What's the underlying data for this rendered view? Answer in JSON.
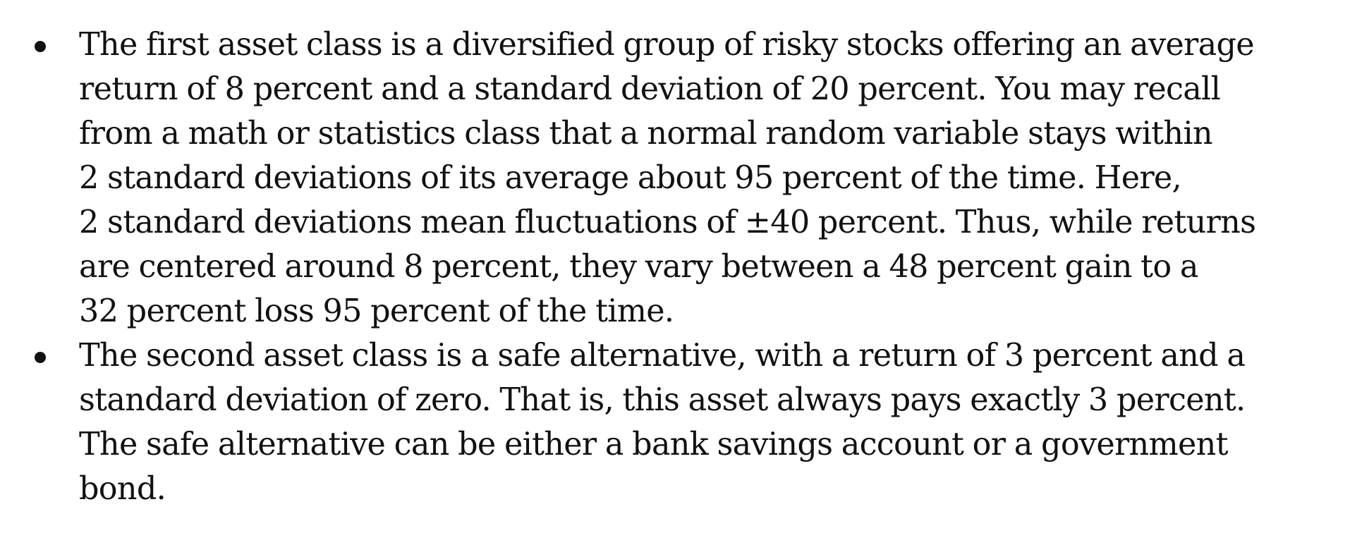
{
  "bullets": [
    {
      "lines": [
        "The first asset class is a diversified group of risky stocks offering an average",
        "return of 8 percent and a standard deviation of 20 percent. You may recall",
        "from a math or statistics class that a normal random variable stays within",
        "2 standard deviations of its average about 95 percent of the time. Here,",
        "2 standard deviations mean fluctuations of ±40 percent. Thus, while returns",
        "are centered around 8 percent, they vary between a 48 percent gain to a",
        "32 percent loss 95 percent of the time."
      ]
    },
    {
      "lines": [
        "The second asset class is a safe alternative, with a return of 3 percent and a",
        "standard deviation of zero. That is, this asset always pays exactly 3 percent.",
        "The safe alternative can be either a bank savings account or a government",
        "bond."
      ]
    }
  ]
}
